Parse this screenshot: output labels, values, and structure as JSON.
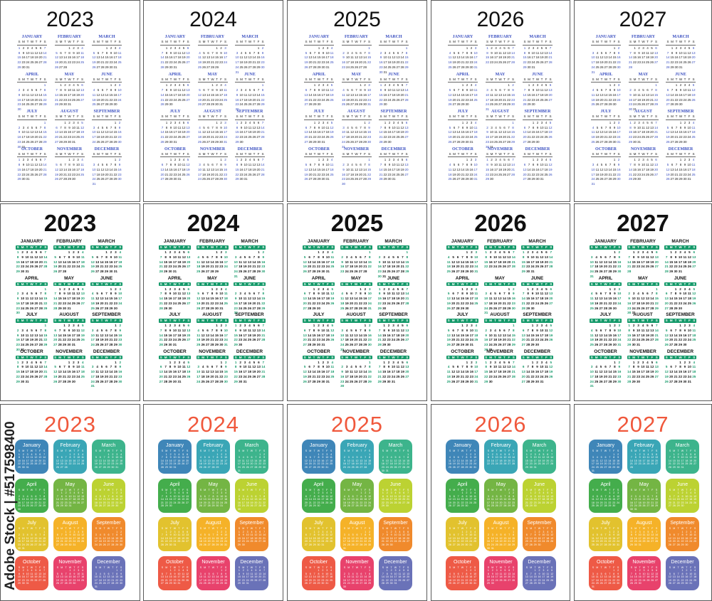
{
  "years": [
    "2023",
    "2024",
    "2025",
    "2026",
    "2027"
  ],
  "rows": [
    {
      "style": "classic",
      "month_names": [
        "JANUARY",
        "FEBRUARY",
        "MARCH",
        "APRIL",
        "MAY",
        "JUNE",
        "JULY",
        "AUGUST",
        "SEPTEMBER",
        "OCTOBER",
        "NOVEMBER",
        "DECEMBER"
      ]
    },
    {
      "style": "green",
      "month_names": [
        "JANUARY",
        "FEBRUARY",
        "MARCH",
        "APRIL",
        "MAY",
        "JUNE",
        "JULY",
        "AUGUST",
        "SEPTEMBER",
        "OCTOBER",
        "NOVEMBER",
        "DECEMBER"
      ]
    },
    {
      "style": "color",
      "month_names": [
        "January",
        "February",
        "March",
        "April",
        "May",
        "June",
        "July",
        "August",
        "September",
        "October",
        "November",
        "December"
      ]
    }
  ],
  "weekdays": [
    "S",
    "M",
    "T",
    "W",
    "T",
    "F",
    "S"
  ],
  "colors": {
    "classic_accent": "#3a4fc0",
    "green_accent": "#159a6a",
    "year_color_row3": "#f0583c",
    "tiles": [
      "#3f86b8",
      "#3aa6b6",
      "#3db48c",
      "#44ad4c",
      "#74b544",
      "#bcd232",
      "#e2c22e",
      "#f5b228",
      "#f08a2c",
      "#ee5a46",
      "#e8426c",
      "#6a72b8"
    ]
  },
  "watermark": "Adobe Stock | #517598400"
}
